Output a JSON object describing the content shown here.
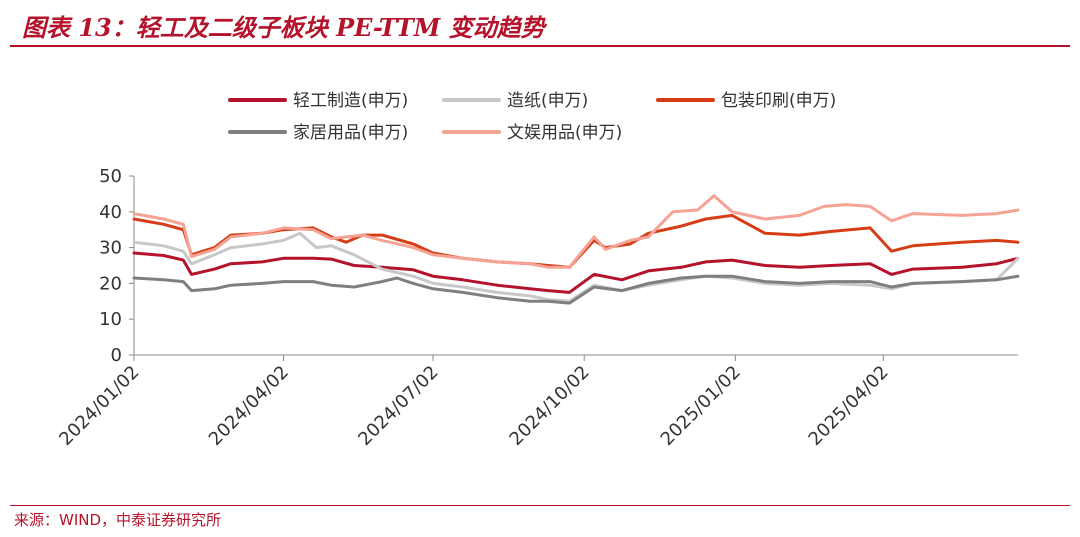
{
  "header": {
    "title": "图表 13：轻工及二级子板块 PE-TTM 变动趋势"
  },
  "footer": {
    "source": "来源：WIND，中泰证券研究所"
  },
  "colors": {
    "brand_red": "#b5122b",
    "axis": "#888888"
  },
  "chart_data": {
    "type": "line",
    "ylim": [
      0,
      50
    ],
    "yticks": [
      0,
      10,
      20,
      30,
      40,
      50
    ],
    "xlim": [
      "2024-01-02",
      "2025-06-23"
    ],
    "xticks": [
      "2024/01/02",
      "2024/04/02",
      "2024/07/02",
      "2024/10/02",
      "2025/01/02",
      "2025/04/02"
    ],
    "xlabel": "",
    "ylabel": "",
    "grid": false,
    "legend_position": "top",
    "series": [
      {
        "name": "轻工制造(申万)",
        "color": "#b5122b",
        "points": [
          [
            "2024-01-02",
            28.5
          ],
          [
            "2024-01-20",
            27.8
          ],
          [
            "2024-02-01",
            26.5
          ],
          [
            "2024-02-06",
            22.5
          ],
          [
            "2024-02-20",
            24.0
          ],
          [
            "2024-03-01",
            25.5
          ],
          [
            "2024-03-20",
            26.0
          ],
          [
            "2024-04-02",
            27.0
          ],
          [
            "2024-04-20",
            27.0
          ],
          [
            "2024-05-01",
            26.8
          ],
          [
            "2024-05-15",
            25.0
          ],
          [
            "2024-06-01",
            24.5
          ],
          [
            "2024-06-20",
            23.8
          ],
          [
            "2024-07-02",
            22.0
          ],
          [
            "2024-07-20",
            21.0
          ],
          [
            "2024-08-10",
            19.5
          ],
          [
            "2024-08-30",
            18.5
          ],
          [
            "2024-09-10",
            18.0
          ],
          [
            "2024-09-23",
            17.5
          ],
          [
            "2024-10-08",
            22.5
          ],
          [
            "2024-10-25",
            21.0
          ],
          [
            "2024-11-10",
            23.5
          ],
          [
            "2024-11-30",
            24.5
          ],
          [
            "2024-12-15",
            26.0
          ],
          [
            "2024-12-31",
            26.5
          ],
          [
            "2025-01-20",
            25.0
          ],
          [
            "2025-02-10",
            24.5
          ],
          [
            "2025-03-01",
            25.0
          ],
          [
            "2025-03-25",
            25.5
          ],
          [
            "2025-04-07",
            22.5
          ],
          [
            "2025-04-20",
            24.0
          ],
          [
            "2025-05-20",
            24.5
          ],
          [
            "2025-06-10",
            25.5
          ],
          [
            "2025-06-23",
            27.0
          ]
        ]
      },
      {
        "name": "造纸(申万)",
        "color": "#c8c8c8",
        "points": [
          [
            "2024-01-02",
            31.5
          ],
          [
            "2024-01-20",
            30.5
          ],
          [
            "2024-02-01",
            29.0
          ],
          [
            "2024-02-06",
            25.5
          ],
          [
            "2024-02-20",
            28.0
          ],
          [
            "2024-03-01",
            30.0
          ],
          [
            "2024-03-20",
            31.0
          ],
          [
            "2024-04-02",
            32.0
          ],
          [
            "2024-04-12",
            34.0
          ],
          [
            "2024-04-22",
            30.0
          ],
          [
            "2024-05-01",
            30.5
          ],
          [
            "2024-05-15",
            28.0
          ],
          [
            "2024-06-01",
            24.0
          ],
          [
            "2024-06-20",
            22.0
          ],
          [
            "2024-07-02",
            20.0
          ],
          [
            "2024-07-20",
            19.0
          ],
          [
            "2024-08-10",
            17.5
          ],
          [
            "2024-08-30",
            16.5
          ],
          [
            "2024-09-10",
            15.5
          ],
          [
            "2024-09-23",
            15.0
          ],
          [
            "2024-10-08",
            19.5
          ],
          [
            "2024-10-25",
            18.0
          ],
          [
            "2024-11-10",
            19.5
          ],
          [
            "2024-11-30",
            21.0
          ],
          [
            "2024-12-15",
            22.0
          ],
          [
            "2024-12-31",
            21.5
          ],
          [
            "2025-01-20",
            20.0
          ],
          [
            "2025-02-10",
            19.5
          ],
          [
            "2025-03-01",
            20.0
          ],
          [
            "2025-03-25",
            19.5
          ],
          [
            "2025-04-07",
            18.5
          ],
          [
            "2025-04-20",
            20.0
          ],
          [
            "2025-05-20",
            20.5
          ],
          [
            "2025-06-10",
            21.0
          ],
          [
            "2025-06-23",
            27.0
          ]
        ]
      },
      {
        "name": "包装印刷(申万)",
        "color": "#d63d17",
        "points": [
          [
            "2024-01-02",
            38.0
          ],
          [
            "2024-01-20",
            36.5
          ],
          [
            "2024-02-01",
            35.0
          ],
          [
            "2024-02-06",
            28.0
          ],
          [
            "2024-02-20",
            30.0
          ],
          [
            "2024-03-01",
            33.5
          ],
          [
            "2024-03-20",
            34.0
          ],
          [
            "2024-04-02",
            35.0
          ],
          [
            "2024-04-20",
            35.5
          ],
          [
            "2024-05-01",
            33.0
          ],
          [
            "2024-05-10",
            31.5
          ],
          [
            "2024-05-20",
            33.5
          ],
          [
            "2024-06-01",
            33.5
          ],
          [
            "2024-06-20",
            31.0
          ],
          [
            "2024-07-02",
            28.5
          ],
          [
            "2024-07-20",
            27.0
          ],
          [
            "2024-08-10",
            26.0
          ],
          [
            "2024-08-30",
            25.5
          ],
          [
            "2024-09-10",
            25.0
          ],
          [
            "2024-09-23",
            24.5
          ],
          [
            "2024-10-08",
            32.0
          ],
          [
            "2024-10-15",
            30.0
          ],
          [
            "2024-10-30",
            31.0
          ],
          [
            "2024-11-10",
            34.0
          ],
          [
            "2024-11-30",
            36.0
          ],
          [
            "2024-12-15",
            38.0
          ],
          [
            "2024-12-31",
            39.0
          ],
          [
            "2025-01-20",
            34.0
          ],
          [
            "2025-02-10",
            33.5
          ],
          [
            "2025-03-01",
            34.5
          ],
          [
            "2025-03-25",
            35.5
          ],
          [
            "2025-04-07",
            29.0
          ],
          [
            "2025-04-20",
            30.5
          ],
          [
            "2025-05-20",
            31.5
          ],
          [
            "2025-06-10",
            32.0
          ],
          [
            "2025-06-23",
            31.5
          ]
        ]
      },
      {
        "name": "家居用品(申万)",
        "color": "#7f7f7f",
        "points": [
          [
            "2024-01-02",
            21.5
          ],
          [
            "2024-01-20",
            21.0
          ],
          [
            "2024-02-01",
            20.5
          ],
          [
            "2024-02-06",
            18.0
          ],
          [
            "2024-02-20",
            18.5
          ],
          [
            "2024-03-01",
            19.5
          ],
          [
            "2024-03-20",
            20.0
          ],
          [
            "2024-04-02",
            20.5
          ],
          [
            "2024-04-20",
            20.5
          ],
          [
            "2024-05-01",
            19.5
          ],
          [
            "2024-05-15",
            19.0
          ],
          [
            "2024-06-01",
            20.5
          ],
          [
            "2024-06-10",
            21.5
          ],
          [
            "2024-06-20",
            20.0
          ],
          [
            "2024-07-02",
            18.5
          ],
          [
            "2024-07-20",
            17.5
          ],
          [
            "2024-08-10",
            16.0
          ],
          [
            "2024-08-30",
            15.0
          ],
          [
            "2024-09-10",
            15.0
          ],
          [
            "2024-09-23",
            14.5
          ],
          [
            "2024-10-08",
            19.0
          ],
          [
            "2024-10-25",
            18.0
          ],
          [
            "2024-11-10",
            20.0
          ],
          [
            "2024-11-30",
            21.5
          ],
          [
            "2024-12-15",
            22.0
          ],
          [
            "2024-12-31",
            22.0
          ],
          [
            "2025-01-20",
            20.5
          ],
          [
            "2025-02-10",
            20.0
          ],
          [
            "2025-03-01",
            20.5
          ],
          [
            "2025-03-25",
            20.5
          ],
          [
            "2025-04-07",
            19.0
          ],
          [
            "2025-04-20",
            20.0
          ],
          [
            "2025-05-20",
            20.5
          ],
          [
            "2025-06-10",
            21.0
          ],
          [
            "2025-06-23",
            22.0
          ]
        ]
      },
      {
        "name": "文娱用品(申万)",
        "color": "#f5a394",
        "points": [
          [
            "2024-01-02",
            39.5
          ],
          [
            "2024-01-20",
            38.0
          ],
          [
            "2024-02-01",
            36.5
          ],
          [
            "2024-02-06",
            27.5
          ],
          [
            "2024-02-20",
            29.5
          ],
          [
            "2024-03-01",
            33.0
          ],
          [
            "2024-03-20",
            34.0
          ],
          [
            "2024-04-02",
            35.5
          ],
          [
            "2024-04-20",
            35.0
          ],
          [
            "2024-05-01",
            32.5
          ],
          [
            "2024-05-20",
            33.5
          ],
          [
            "2024-06-01",
            32.0
          ],
          [
            "2024-06-20",
            30.0
          ],
          [
            "2024-07-02",
            28.0
          ],
          [
            "2024-07-20",
            27.0
          ],
          [
            "2024-08-10",
            26.0
          ],
          [
            "2024-08-30",
            25.5
          ],
          [
            "2024-09-10",
            24.5
          ],
          [
            "2024-09-23",
            24.5
          ],
          [
            "2024-10-08",
            33.0
          ],
          [
            "2024-10-15",
            29.5
          ],
          [
            "2024-10-30",
            32.0
          ],
          [
            "2024-11-10",
            33.0
          ],
          [
            "2024-11-25",
            40.0
          ],
          [
            "2024-12-10",
            40.5
          ],
          [
            "2024-12-20",
            44.5
          ],
          [
            "2024-12-31",
            40.0
          ],
          [
            "2025-01-20",
            38.0
          ],
          [
            "2025-02-10",
            39.0
          ],
          [
            "2025-02-25",
            41.5
          ],
          [
            "2025-03-10",
            42.0
          ],
          [
            "2025-03-25",
            41.5
          ],
          [
            "2025-04-07",
            37.5
          ],
          [
            "2025-04-20",
            39.5
          ],
          [
            "2025-05-20",
            39.0
          ],
          [
            "2025-06-10",
            39.5
          ],
          [
            "2025-06-23",
            40.5
          ]
        ]
      }
    ]
  }
}
